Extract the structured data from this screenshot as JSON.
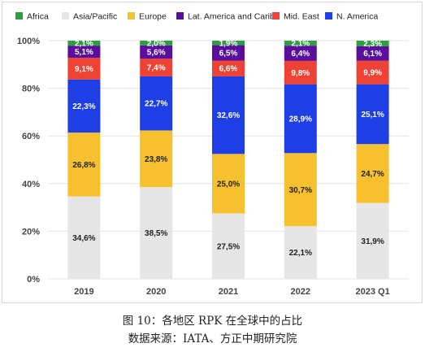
{
  "chart_data": {
    "type": "bar",
    "stacked": true,
    "title": "",
    "xlabel": "",
    "ylabel": "",
    "categories": [
      "2019",
      "2020",
      "2021",
      "2022",
      "2023 Q1"
    ],
    "ylim": [
      0,
      100
    ],
    "yticks": [
      "0%",
      "20%",
      "40%",
      "60%",
      "80%",
      "100%"
    ],
    "grid": true,
    "legend_position": "top",
    "series": [
      {
        "name": "Asia/Pacific",
        "color": "#e6e6e6",
        "label_color": "#222222",
        "values": [
          34.6,
          38.5,
          27.5,
          22.1,
          31.9
        ],
        "labels": [
          "34,6%",
          "38,5%",
          "27,5%",
          "22,1%",
          "31,9%"
        ]
      },
      {
        "name": "Europe",
        "color": "#f6c02e",
        "label_color": "#222222",
        "values": [
          26.8,
          23.8,
          25.0,
          30.7,
          24.7
        ],
        "labels": [
          "26,8%",
          "23,8%",
          "25,0%",
          "30,7%",
          "24,7%"
        ]
      },
      {
        "name": "N. America",
        "color": "#1f3fe6",
        "label_color": "#ffffff",
        "values": [
          22.3,
          22.7,
          32.6,
          28.9,
          25.1
        ],
        "labels": [
          "22,3%",
          "22,7%",
          "32,6%",
          "28,9%",
          "25,1%"
        ]
      },
      {
        "name": "Mid. East",
        "color": "#ee4234",
        "label_color": "#ffffff",
        "values": [
          9.1,
          7.4,
          6.6,
          9.8,
          9.9
        ],
        "labels": [
          "9,1%",
          "7,4%",
          "6,6%",
          "9,8%",
          "9,9%"
        ]
      },
      {
        "name": "Lat. America and Carib.",
        "color": "#5a0f9c",
        "label_color": "#ffffff",
        "values": [
          5.1,
          5.6,
          6.5,
          6.4,
          6.1
        ],
        "labels": [
          "5,1%",
          "5,6%",
          "6,5%",
          "6,4%",
          "6,1%"
        ]
      },
      {
        "name": "Africa",
        "color": "#2e9e43",
        "label_color": "#ffffff",
        "values": [
          2.1,
          2.0,
          1.9,
          2.1,
          2.3
        ],
        "labels": [
          "2,1%",
          "2,0%",
          "1,9%",
          "2,1%",
          "2,3%"
        ]
      }
    ],
    "legend_order": [
      "Africa",
      "Asia/Pacific",
      "Europe",
      "Lat. America and Carib.",
      "Mid. East",
      "N. America"
    ]
  },
  "caption": {
    "figure_title": "图 10：各地区 RPK 在全球中的占比",
    "source": "数据来源：IATA、方正中期研究院"
  }
}
